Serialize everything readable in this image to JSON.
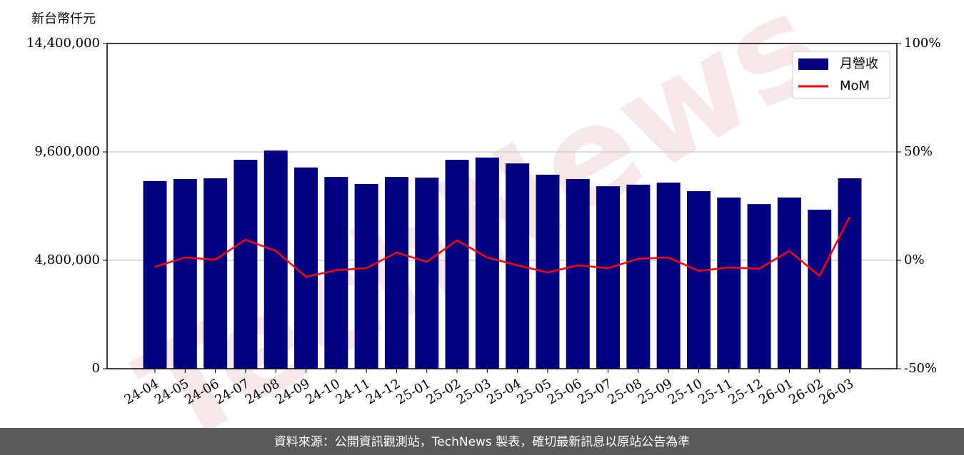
{
  "chart_data": {
    "type": "bar",
    "ylabel": "新台幣仟元",
    "categories": [
      "24-04",
      "24-05",
      "24-06",
      "24-07",
      "24-08",
      "24-09",
      "24-10",
      "24-11",
      "24-12",
      "25-01",
      "25-02",
      "25-03",
      "25-04",
      "25-05",
      "25-06",
      "25-07",
      "25-08",
      "25-09",
      "25-10",
      "25-11",
      "25-12",
      "26-01",
      "26-02",
      "26-03"
    ],
    "series": [
      {
        "name": "月營收",
        "type": "bar",
        "color": "#000080",
        "values": [
          8310000,
          8400000,
          8430000,
          9250000,
          9660000,
          8910000,
          8490000,
          8180000,
          8490000,
          8460000,
          9250000,
          9350000,
          9090000,
          8590000,
          8400000,
          8080000,
          8150000,
          8240000,
          7860000,
          7580000,
          7290000,
          7580000,
          7040000,
          8430000
        ]
      },
      {
        "name": "MoM",
        "type": "line",
        "axis": "y2",
        "color": "#ff0000",
        "values": [
          -3.0,
          1.3,
          0.3,
          9.5,
          4.3,
          -7.6,
          -4.6,
          -3.6,
          3.6,
          -0.7,
          9.2,
          1.3,
          -2.3,
          -5.6,
          -2.3,
          -3.6,
          0.7,
          1.3,
          -4.9,
          -3.3,
          -3.9,
          4.3,
          -7.2,
          20.1
        ]
      }
    ],
    "ylim": [
      0,
      14400000
    ],
    "yticks": [
      0,
      {
        "value": 4800000,
        "label": "4,800,000"
      },
      {
        "value": 9600000,
        "label": "9,600,000"
      },
      {
        "value": 14400000,
        "label": "14,400,000"
      }
    ],
    "y2lim": [
      -50,
      100
    ],
    "y2ticks": [
      {
        "value": -50,
        "label": "-50%"
      },
      {
        "value": 0,
        "label": "0%"
      },
      {
        "value": 50,
        "label": "50%"
      },
      {
        "value": 100,
        "label": "100%"
      }
    ],
    "grid": true,
    "legend": "upper right",
    "watermark": "TechNews",
    "footer": "資料來源：公開資訊觀測站，TechNews 製表，確切最新訊息以原站公告為準"
  }
}
